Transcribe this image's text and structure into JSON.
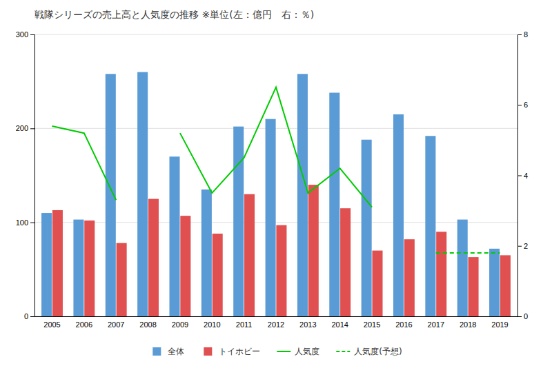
{
  "chart_data": {
    "type": "bar",
    "title": "戦隊シリーズの売上高と人気度の推移 ※単位(左：億円　右：％)",
    "categories": [
      "2005",
      "2006",
      "2007",
      "2008",
      "2009",
      "2010",
      "2011",
      "2012",
      "2013",
      "2014",
      "2015",
      "2016",
      "2017",
      "2018",
      "2019"
    ],
    "series": [
      {
        "name": "全体",
        "color": "#5B9BD5",
        "values": [
          110,
          103,
          258,
          260,
          170,
          135,
          202,
          210,
          258,
          238,
          188,
          215,
          192,
          103,
          72
        ]
      },
      {
        "name": "トイホビー",
        "color": "#E05050",
        "values": [
          113,
          102,
          78,
          125,
          107,
          88,
          130,
          97,
          140,
          115,
          70,
          82,
          90,
          63,
          65
        ]
      },
      {
        "name": "人気度",
        "type": "line",
        "axis": "y2",
        "color": "#00CC00",
        "line_style": "solid",
        "values": [
          5.4,
          5.2,
          3.3,
          null,
          5.2,
          3.5,
          4.5,
          6.5,
          3.5,
          4.2,
          3.1,
          null,
          null,
          null,
          null
        ]
      },
      {
        "name": "人気度(予想)",
        "type": "line",
        "axis": "y2",
        "color": "#00CC00",
        "line_style": "dashed",
        "values": [
          null,
          null,
          null,
          null,
          null,
          null,
          null,
          null,
          null,
          null,
          null,
          null,
          1.8,
          1.8,
          1.8
        ]
      }
    ],
    "ylim": [
      0,
      300
    ],
    "yticks": [
      0,
      100,
      200,
      300
    ],
    "y2lim": [
      0,
      8
    ],
    "y2ticks": [
      0,
      2,
      4,
      6,
      8
    ],
    "grid": true,
    "legend": "bottom"
  }
}
